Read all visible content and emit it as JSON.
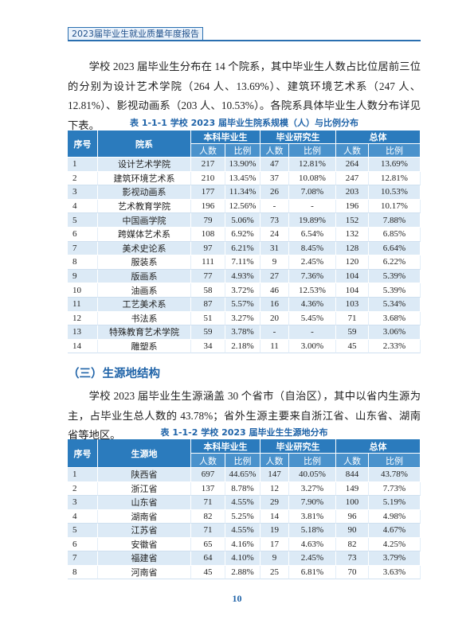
{
  "header": {
    "title": "2023届毕业生就业质量年度报告"
  },
  "paragraph_1": "学校 2023 届毕业生分布在 14 个院系，其中毕业生人数占比位居前三位的分别为设计艺术学院（264 人、13.69%）、建筑环境艺术系（247 人、12.81%）、影视动画系（203 人、10.53%）。各院系具体毕业生人数分布详见下表。",
  "table_1": {
    "caption": "表 1-1-1  学校 2023 届毕业生院系规模（人）与比例分布",
    "columns": [
      "序号",
      "院系"
    ],
    "groups": [
      "本科毕业生",
      "毕业研究生",
      "总体"
    ],
    "subheaders": [
      "人数",
      "比例",
      "人数",
      "比例",
      "人数",
      "比例"
    ],
    "rows": [
      [
        "1",
        "设计艺术学院",
        "217",
        "13.90%",
        "47",
        "12.81%",
        "264",
        "13.69%"
      ],
      [
        "2",
        "建筑环境艺术系",
        "210",
        "13.45%",
        "37",
        "10.08%",
        "247",
        "12.81%"
      ],
      [
        "3",
        "影视动画系",
        "177",
        "11.34%",
        "26",
        "7.08%",
        "203",
        "10.53%"
      ],
      [
        "4",
        "艺术教育学院",
        "196",
        "12.56%",
        "-",
        "-",
        "196",
        "10.17%"
      ],
      [
        "5",
        "中国画学院",
        "79",
        "5.06%",
        "73",
        "19.89%",
        "152",
        "7.88%"
      ],
      [
        "6",
        "跨媒体艺术系",
        "108",
        "6.92%",
        "24",
        "6.54%",
        "132",
        "6.85%"
      ],
      [
        "7",
        "美术史论系",
        "97",
        "6.21%",
        "31",
        "8.45%",
        "128",
        "6.64%"
      ],
      [
        "8",
        "服装系",
        "111",
        "7.11%",
        "9",
        "2.45%",
        "120",
        "6.22%"
      ],
      [
        "9",
        "版画系",
        "77",
        "4.93%",
        "27",
        "7.36%",
        "104",
        "5.39%"
      ],
      [
        "10",
        "油画系",
        "58",
        "3.72%",
        "46",
        "12.53%",
        "104",
        "5.39%"
      ],
      [
        "11",
        "工艺美术系",
        "87",
        "5.57%",
        "16",
        "4.36%",
        "103",
        "5.34%"
      ],
      [
        "12",
        "书法系",
        "51",
        "3.27%",
        "20",
        "5.45%",
        "71",
        "3.68%"
      ],
      [
        "13",
        "特殊教育艺术学院",
        "59",
        "3.78%",
        "-",
        "-",
        "59",
        "3.06%"
      ],
      [
        "14",
        "雕塑系",
        "34",
        "2.18%",
        "11",
        "3.00%",
        "45",
        "2.33%"
      ]
    ]
  },
  "section_heading": "（三）生源地结构",
  "paragraph_2": "学校 2023 届毕业生生源涵盖 30 个省市（自治区），其中以省内生源为主，占毕业生总人数的 43.78%；省外生源主要来自浙江省、山东省、湖南省等地区。",
  "table_2": {
    "caption": "表 1-1-2  学校 2023 届毕业生生源地分布",
    "columns": [
      "序号",
      "生源地"
    ],
    "groups": [
      "本科毕业生",
      "毕业研究生",
      "总体"
    ],
    "subheaders": [
      "人数",
      "比例",
      "人数",
      "比例",
      "人数",
      "比例"
    ],
    "rows": [
      [
        "1",
        "陕西省",
        "697",
        "44.65%",
        "147",
        "40.05%",
        "844",
        "43.78%"
      ],
      [
        "2",
        "浙江省",
        "137",
        "8.78%",
        "12",
        "3.27%",
        "149",
        "7.73%"
      ],
      [
        "3",
        "山东省",
        "71",
        "4.55%",
        "29",
        "7.90%",
        "100",
        "5.19%"
      ],
      [
        "4",
        "湖南省",
        "82",
        "5.25%",
        "14",
        "3.81%",
        "96",
        "4.98%"
      ],
      [
        "5",
        "江苏省",
        "71",
        "4.55%",
        "19",
        "5.18%",
        "90",
        "4.67%"
      ],
      [
        "6",
        "安徽省",
        "65",
        "4.16%",
        "17",
        "4.63%",
        "82",
        "4.25%"
      ],
      [
        "7",
        "福建省",
        "64",
        "4.10%",
        "9",
        "2.45%",
        "73",
        "3.79%"
      ],
      [
        "8",
        "河南省",
        "45",
        "2.88%",
        "25",
        "6.81%",
        "70",
        "3.63%"
      ]
    ]
  },
  "page_number": "10"
}
